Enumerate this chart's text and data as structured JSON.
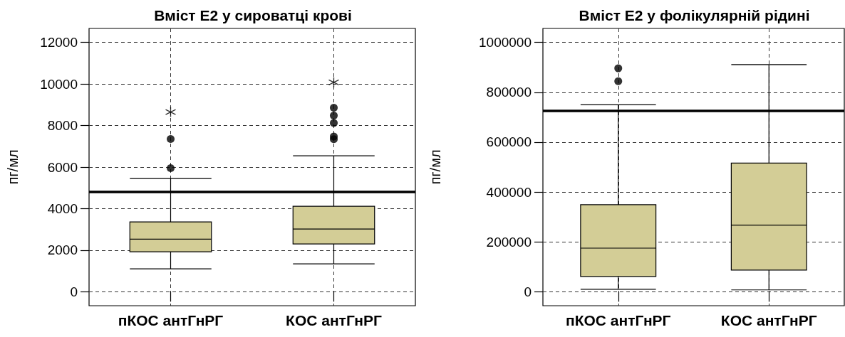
{
  "chart_data": [
    {
      "type": "box",
      "title": "Вміст E2 у сироватці крові",
      "ylabel": "пг/мл",
      "categories": [
        "пКОС антГнРГ",
        "КОС антГнРГ"
      ],
      "series": [
        {
          "type": "box",
          "color": "#d3cd96",
          "boxes": [
            {
              "low": 1100,
              "q1": 1920,
              "median": 2530,
              "q3": 3360,
              "high": 5450,
              "outliers": [
                5950,
                7350
              ]
            },
            {
              "low": 1340,
              "q1": 2300,
              "median": 3020,
              "q3": 4110,
              "high": 6540,
              "outliers": [
                7340,
                7470,
                8120,
                8480,
                8860
              ]
            }
          ]
        },
        {
          "type": "scatter",
          "marker": "cross",
          "color": "#000000",
          "x": [
            "пКОС антГнРГ",
            "КОС антГнРГ"
          ],
          "values": [
            8650,
            10080
          ]
        }
      ],
      "ylim": [
        -675,
        12675
      ],
      "yticks": [
        0,
        2000,
        4000,
        6000,
        8000,
        10000,
        12000
      ],
      "grid": true,
      "ref_lines": [
        {
          "axis": "y",
          "value": 4810,
          "color": "#000000",
          "line_style": "solid"
        }
      ]
    },
    {
      "type": "box",
      "title": "Вміст E2 у фолікулярній рідині",
      "ylabel": "пг/мл",
      "categories": [
        "пКОС антГнРГ",
        "КОС антГнРГ"
      ],
      "series": [
        {
          "type": "box",
          "color": "#d3cd96",
          "boxes": [
            {
              "low": 10000,
              "q1": 61000,
              "median": 175000,
              "q3": 349000,
              "high": 750000,
              "outliers": [
                844000,
                896000
              ]
            },
            {
              "low": 7500,
              "q1": 87000,
              "median": 267000,
              "q3": 516000,
              "high": 911000
            }
          ]
        }
      ],
      "ylim": [
        -56000,
        1056000
      ],
      "yticks": [
        0,
        200000,
        400000,
        600000,
        800000,
        1000000
      ],
      "grid": true,
      "ref_lines": [
        {
          "axis": "y",
          "value": 725000,
          "color": "#000000",
          "line_style": "solid"
        }
      ]
    }
  ]
}
